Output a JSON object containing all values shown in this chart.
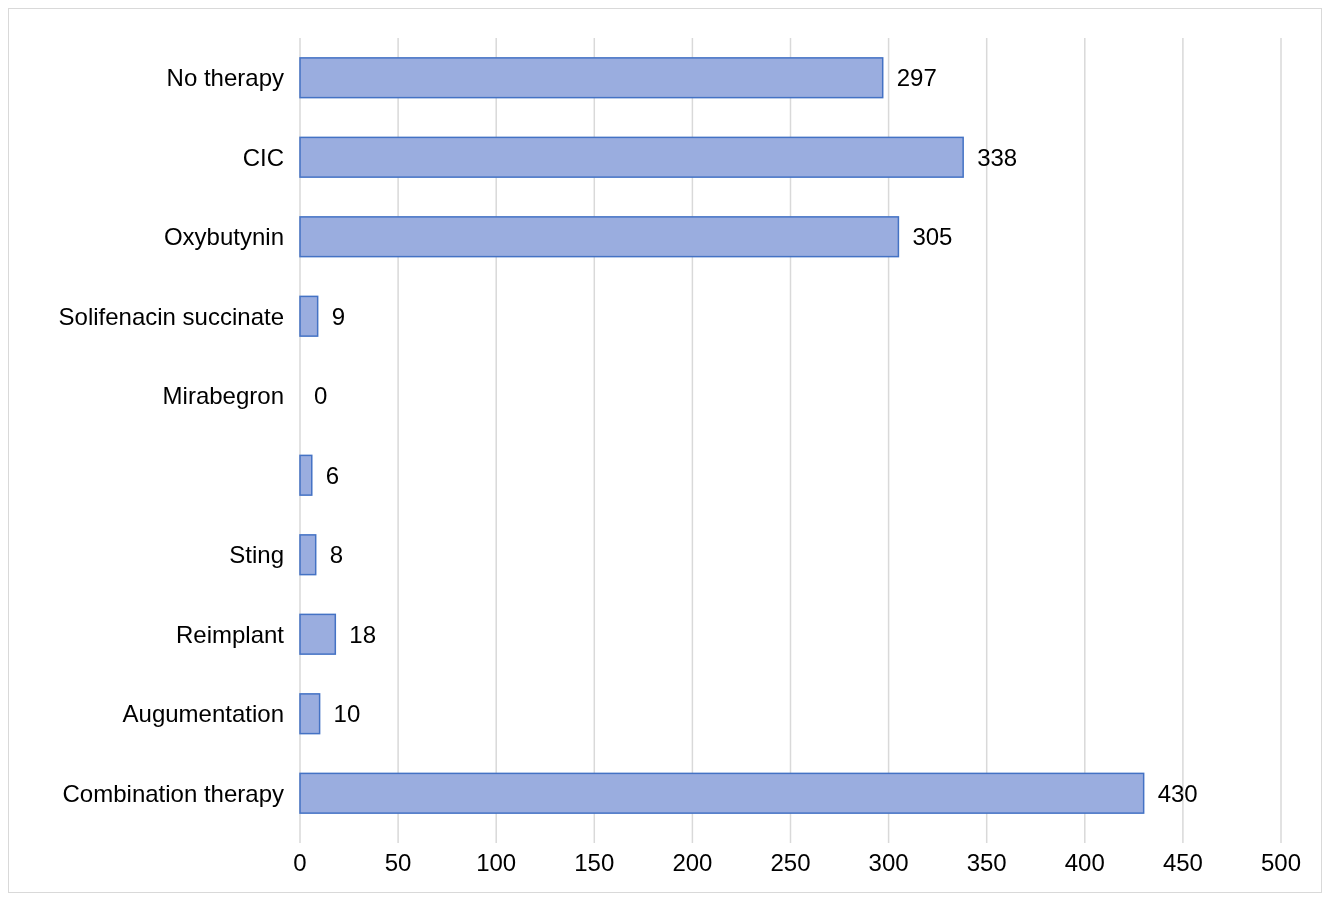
{
  "chart_data": {
    "type": "bar",
    "orientation": "horizontal",
    "categories": [
      "No therapy",
      "CIC",
      "Oxybutynin",
      "Solifenacin succinate",
      "Mirabegron",
      null,
      "Sting",
      "Reimplant",
      "Augumentation",
      "Combination therapy"
    ],
    "values": [
      297,
      338,
      305,
      9,
      0,
      6,
      8,
      18,
      10,
      430
    ],
    "color": "#9aaddf",
    "xlim": [
      0,
      500
    ],
    "xticks": [
      0,
      50,
      100,
      150,
      200,
      250,
      300,
      350,
      400,
      450,
      500
    ],
    "grid": "x",
    "data_labels": true
  }
}
